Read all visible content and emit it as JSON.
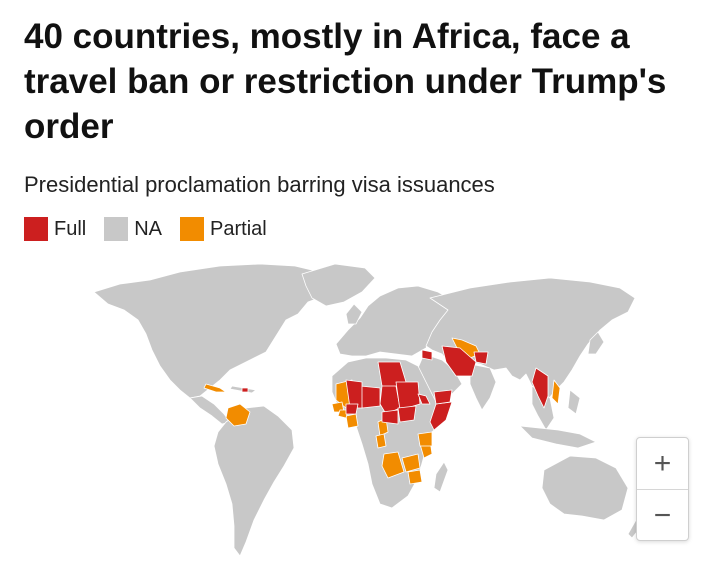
{
  "header": {
    "title": "40 countries, mostly in Africa, face a travel ban or restriction under Trump's order",
    "subtitle": "Presidential proclamation barring visa issuances"
  },
  "legend": [
    {
      "label": "Full",
      "color": "#cc1f1f"
    },
    {
      "label": "NA",
      "color": "#c8c8c8"
    },
    {
      "label": "Partial",
      "color": "#f28c00"
    }
  ],
  "map": {
    "colors": {
      "full": "#cc1f1f",
      "na": "#c8c8c8",
      "partial": "#f28c00",
      "border": "#ffffff"
    }
  },
  "zoom": {
    "in_label": "+",
    "out_label": "−"
  }
}
